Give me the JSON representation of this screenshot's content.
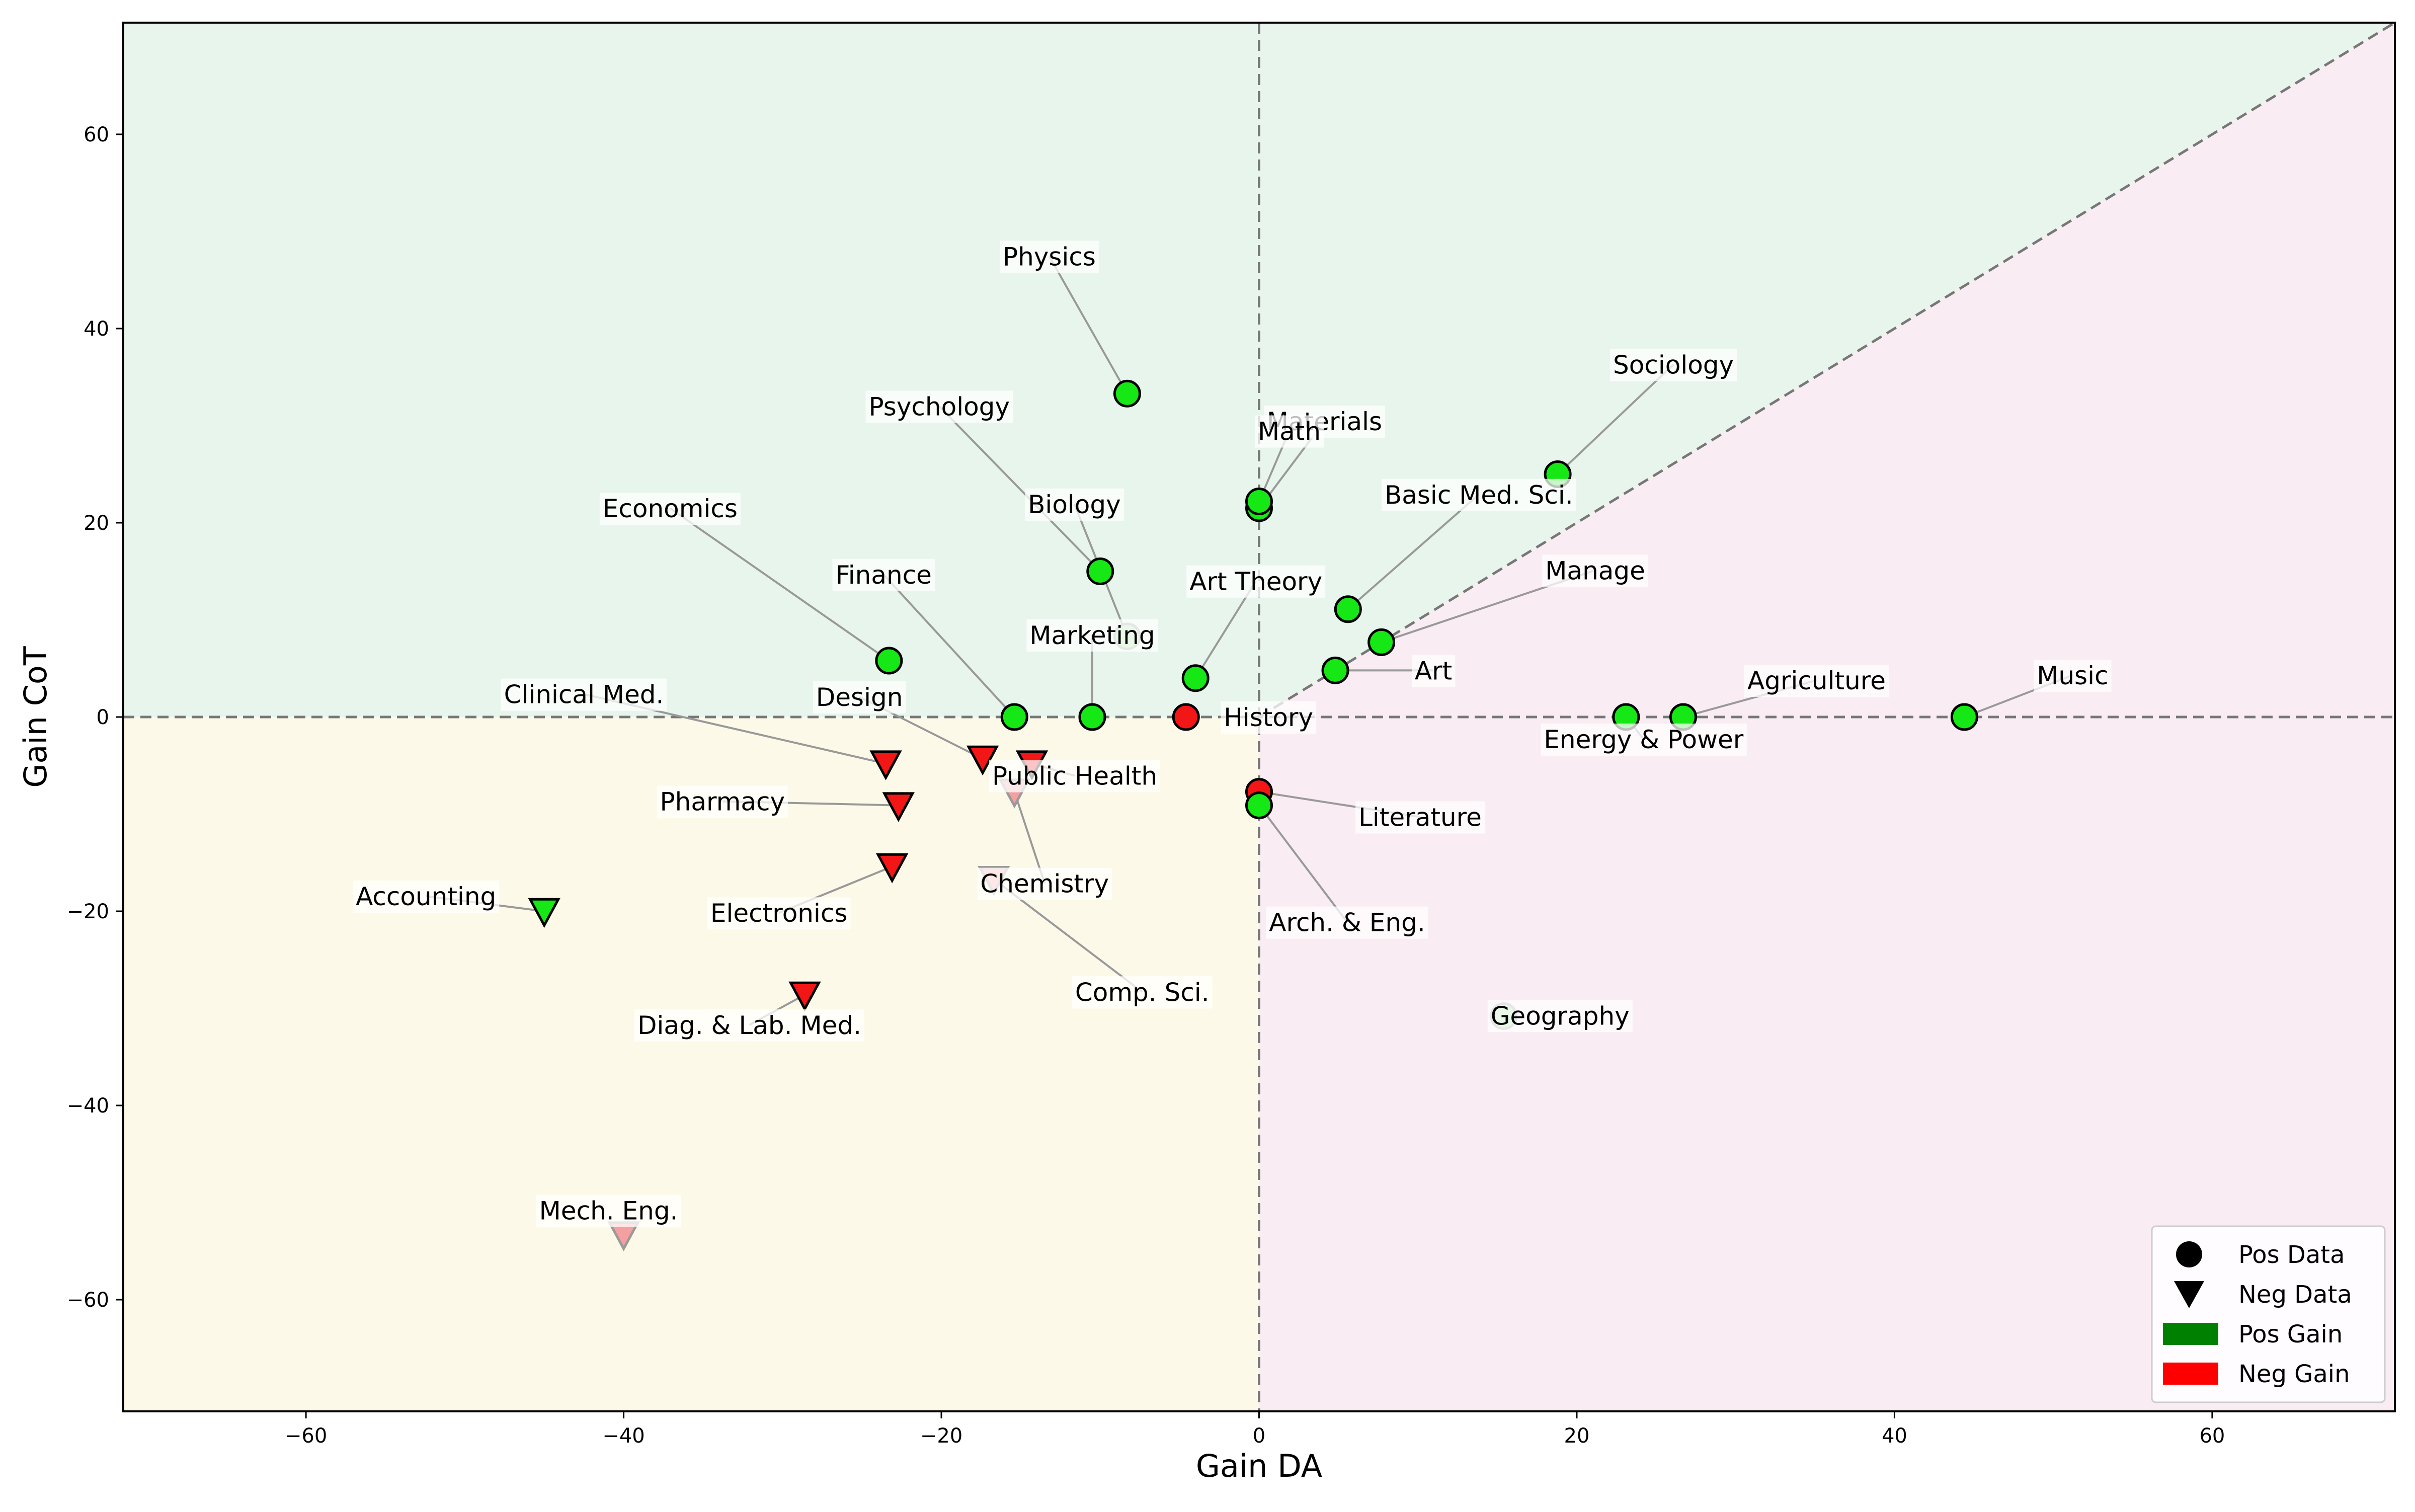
{
  "chart_data": {
    "type": "scatter",
    "xlabel": "Gain DA",
    "ylabel": "Gain CoT",
    "xlim": [
      -71.5,
      71.5
    ],
    "ylim": [
      -71.5,
      71.5
    ],
    "xticks": [
      -60,
      -40,
      -20,
      0,
      20,
      40,
      60
    ],
    "yticks": [
      -60,
      -40,
      -20,
      0,
      20,
      40,
      60
    ],
    "tick_labels": {
      "x": [
        "−60",
        "−40",
        "−20",
        "0",
        "20",
        "40",
        "60"
      ],
      "y": [
        "−60",
        "−40",
        "−20",
        "0",
        "20",
        "40",
        "60"
      ]
    },
    "reference_lines": [
      "x = 0",
      "y = 0",
      "y = x (x > 0)"
    ],
    "regions": [
      {
        "name": "above",
        "color": "#e8f5ec"
      },
      {
        "name": "lower-left",
        "color": "#fdf9e8"
      },
      {
        "name": "lower-right",
        "color": "#f9ecf3"
      }
    ],
    "colors": {
      "pos_gain": "#15e815",
      "neg_gain": "#f21616",
      "pos_gain_faded": "#a3e8a3",
      "neg_gain_faded": "#f5a0a0",
      "legend_pos_gain": "#008000",
      "legend_neg_gain": "#ff0000"
    },
    "legend": {
      "placement": "bottom-right",
      "entries": [
        {
          "label": "Pos Data",
          "marker": "circle"
        },
        {
          "label": "Neg Data",
          "marker": "triangle"
        },
        {
          "label": "Pos Gain",
          "marker": "patch",
          "color": "#008000"
        },
        {
          "label": "Neg Gain",
          "marker": "patch",
          "color": "#ff0000"
        }
      ]
    },
    "points": [
      {
        "label": "Physics",
        "x": -8.3,
        "y": 33.3,
        "marker": "circle",
        "gain": "pos",
        "faded": false
      },
      {
        "label": "Materials",
        "x": 0.0,
        "y": 21.5,
        "marker": "circle",
        "gain": "pos",
        "faded": false
      },
      {
        "label": "Math",
        "x": 0.0,
        "y": 22.2,
        "marker": "circle",
        "gain": "pos",
        "faded": false
      },
      {
        "label": "Sociology",
        "x": 18.8,
        "y": 25.0,
        "marker": "circle",
        "gain": "pos",
        "faded": false
      },
      {
        "label": "Psychology",
        "x": -10.0,
        "y": 15.0,
        "marker": "circle",
        "gain": "pos",
        "faded": false
      },
      {
        "label": "Biology",
        "x": -8.3,
        "y": 8.3,
        "marker": "circle",
        "gain": "pos",
        "faded": true
      },
      {
        "label": "Basic Med. Sci.",
        "x": 5.6,
        "y": 11.1,
        "marker": "circle",
        "gain": "pos",
        "faded": false
      },
      {
        "label": "Economics",
        "x": -23.3,
        "y": 5.8,
        "marker": "circle",
        "gain": "pos",
        "faded": false
      },
      {
        "label": "Manage",
        "x": 7.7,
        "y": 7.7,
        "marker": "circle",
        "gain": "pos",
        "faded": false
      },
      {
        "label": "Art Theory",
        "x": -4.0,
        "y": 4.0,
        "marker": "circle",
        "gain": "pos",
        "faded": false
      },
      {
        "label": "Finance",
        "x": -15.4,
        "y": 0.0,
        "marker": "circle",
        "gain": "pos",
        "faded": false
      },
      {
        "label": "Marketing",
        "x": -10.5,
        "y": 0.0,
        "marker": "circle",
        "gain": "pos",
        "faded": false
      },
      {
        "label": "Art",
        "x": 4.8,
        "y": 4.8,
        "marker": "circle",
        "gain": "pos",
        "faded": false
      },
      {
        "label": "History",
        "x": -4.6,
        "y": 0.0,
        "marker": "circle",
        "gain": "neg",
        "faded": false
      },
      {
        "label": "Agriculture",
        "x": 26.7,
        "y": 0.0,
        "marker": "circle",
        "gain": "pos",
        "faded": false
      },
      {
        "label": "Energy & Power",
        "x": 23.1,
        "y": 0.0,
        "marker": "circle",
        "gain": "pos",
        "faded": false
      },
      {
        "label": "Music",
        "x": 44.4,
        "y": 0.0,
        "marker": "circle",
        "gain": "pos",
        "faded": false
      },
      {
        "label": "Clinical Med.",
        "x": -23.5,
        "y": -4.8,
        "marker": "triangle",
        "gain": "neg",
        "faded": false
      },
      {
        "label": "Design",
        "x": -17.4,
        "y": -4.3,
        "marker": "triangle",
        "gain": "neg",
        "faded": false
      },
      {
        "label": "Public Health",
        "x": -14.3,
        "y": -4.8,
        "marker": "triangle",
        "gain": "neg",
        "faded": false
      },
      {
        "label": "Chemistry",
        "x": -15.4,
        "y": -7.7,
        "marker": "triangle",
        "gain": "neg",
        "faded": true
      },
      {
        "label": "Literature",
        "x": 0.0,
        "y": -7.7,
        "marker": "circle",
        "gain": "neg",
        "faded": false
      },
      {
        "label": "Arch. & Eng.",
        "x": 0.0,
        "y": -9.1,
        "marker": "circle",
        "gain": "pos",
        "faded": false
      },
      {
        "label": "Pharmacy",
        "x": -22.7,
        "y": -9.1,
        "marker": "triangle",
        "gain": "neg",
        "faded": false
      },
      {
        "label": "Electronics",
        "x": -23.1,
        "y": -15.4,
        "marker": "triangle",
        "gain": "neg",
        "faded": false
      },
      {
        "label": "Comp. Sci.",
        "x": -16.7,
        "y": -16.7,
        "marker": "triangle",
        "gain": "neg",
        "faded": true
      },
      {
        "label": "Accounting",
        "x": -45.0,
        "y": -20.0,
        "marker": "triangle",
        "gain": "pos",
        "faded": false
      },
      {
        "label": "Diag. & Lab. Med.",
        "x": -28.6,
        "y": -28.6,
        "marker": "triangle",
        "gain": "neg",
        "faded": false
      },
      {
        "label": "Geography",
        "x": 15.4,
        "y": -30.8,
        "marker": "circle",
        "gain": "pos",
        "faded": true
      },
      {
        "label": "Mech. Eng.",
        "x": -40.0,
        "y": -53.3,
        "marker": "triangle",
        "gain": "neg",
        "faded": true
      }
    ]
  }
}
